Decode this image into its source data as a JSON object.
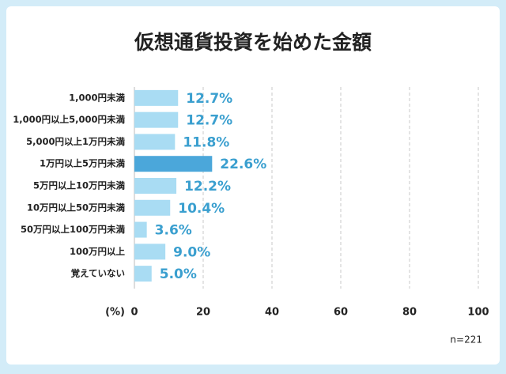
{
  "chart_data": {
    "type": "bar",
    "orientation": "horizontal",
    "title": "仮想通貨投資を始めた金額",
    "categories": [
      "1,000円未満",
      "1,000円以上5,000円未満",
      "5,000円以上1万円未満",
      "1万円以上5万円未満",
      "5万円以上10万円未満",
      "10万円以上50万円未満",
      "50万円以上100万円未満",
      "100万円以上",
      "覚えていない"
    ],
    "values": [
      12.7,
      12.7,
      11.8,
      22.6,
      12.2,
      10.4,
      3.6,
      9.0,
      5.0
    ],
    "value_labels": [
      "12.7%",
      "12.7%",
      "11.8%",
      "22.6%",
      "12.2%",
      "10.4%",
      "3.6%",
      "9.0%",
      "5.0%"
    ],
    "colors": [
      "#a9dcf3",
      "#a9dcf3",
      "#a9dcf3",
      "#4ba7da",
      "#a9dcf3",
      "#a9dcf3",
      "#a9dcf3",
      "#a9dcf3",
      "#a9dcf3"
    ],
    "label_color": "#3a9fcf",
    "xlabel": "(%)",
    "note": "n=221",
    "xlim": [
      0,
      100
    ],
    "xticks": [
      0,
      20,
      40,
      60,
      80,
      100
    ],
    "grid": true
  }
}
